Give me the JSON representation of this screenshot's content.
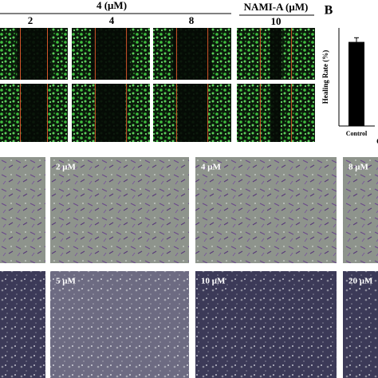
{
  "figure": {
    "panel_a": {
      "header": "4 (μM)",
      "concentrations": [
        "2",
        "4",
        "8"
      ],
      "control_header": "NAMI-A (μM)",
      "control_concentration": "10"
    },
    "panel_b_label": "B",
    "panel_c_partial_label": "C",
    "upper_row_labels": [
      "2 μM",
      "4 μM",
      "8 μM"
    ],
    "lower_row_labels": [
      "5 μM",
      "10 μM",
      "20 μM"
    ]
  },
  "chart_data": {
    "type": "bar",
    "ylabel": "Healing Rate (%)",
    "categories": [
      "Control"
    ],
    "values": [
      60
    ],
    "errors": [
      3
    ],
    "ylim": [
      0,
      70
    ],
    "color": "#000000"
  }
}
